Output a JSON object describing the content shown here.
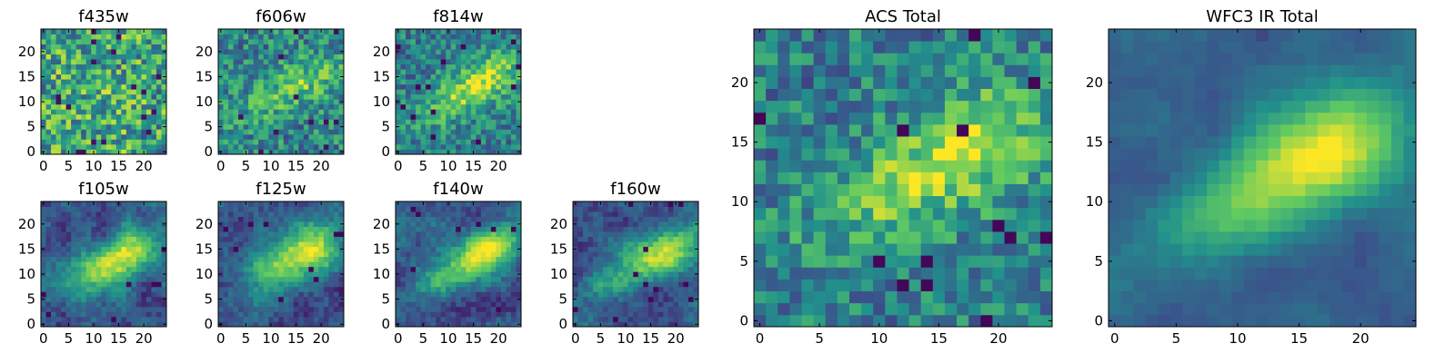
{
  "figure": {
    "description_type": "multi-panel image grid",
    "colormap": "viridis",
    "colors": {
      "cmap_stops": [
        "#440154",
        "#3b528b",
        "#21918c",
        "#5ec962",
        "#fde725"
      ],
      "axes_frame": "#000000",
      "background": "#ffffff"
    }
  },
  "chart_data": [
    {
      "type": "heatmap",
      "title": "f435w",
      "xticks": [
        "0",
        "5",
        "10",
        "15",
        "20"
      ],
      "yticks": [
        "0",
        "5",
        "10",
        "15",
        "20"
      ],
      "xlim": [
        0,
        25
      ],
      "ylim": [
        0,
        25
      ],
      "grid": false,
      "pattern": "noise"
    },
    {
      "type": "heatmap",
      "title": "f606w",
      "xticks": [
        "0",
        "5",
        "10",
        "15",
        "20"
      ],
      "yticks": [
        "0",
        "5",
        "10",
        "15",
        "20"
      ],
      "xlim": [
        0,
        25
      ],
      "ylim": [
        0,
        25
      ],
      "grid": false,
      "pattern": "faint-galaxy"
    },
    {
      "type": "heatmap",
      "title": "f814w",
      "xticks": [
        "0",
        "5",
        "10",
        "15",
        "20"
      ],
      "yticks": [
        "0",
        "5",
        "10",
        "15",
        "20"
      ],
      "xlim": [
        0,
        25
      ],
      "ylim": [
        0,
        25
      ],
      "grid": false,
      "pattern": "galaxy-noisy"
    },
    {
      "type": "heatmap",
      "title": "f105w",
      "xticks": [
        "0",
        "5",
        "10",
        "15",
        "20"
      ],
      "yticks": [
        "0",
        "5",
        "10",
        "15",
        "20"
      ],
      "xlim": [
        0,
        25
      ],
      "ylim": [
        0,
        25
      ],
      "grid": false,
      "pattern": "galaxy"
    },
    {
      "type": "heatmap",
      "title": "f125w",
      "xticks": [
        "0",
        "5",
        "10",
        "15",
        "20"
      ],
      "yticks": [
        "0",
        "5",
        "10",
        "15",
        "20"
      ],
      "xlim": [
        0,
        25
      ],
      "ylim": [
        0,
        25
      ],
      "grid": false,
      "pattern": "galaxy"
    },
    {
      "type": "heatmap",
      "title": "f140w",
      "xticks": [
        "0",
        "5",
        "10",
        "15",
        "20"
      ],
      "yticks": [
        "0",
        "5",
        "10",
        "15",
        "20"
      ],
      "xlim": [
        0,
        25
      ],
      "ylim": [
        0,
        25
      ],
      "grid": false,
      "pattern": "galaxy"
    },
    {
      "type": "heatmap",
      "title": "f160w",
      "xticks": [
        "0",
        "5",
        "10",
        "15",
        "20"
      ],
      "yticks": [
        "0",
        "5",
        "10",
        "15",
        "20"
      ],
      "xlim": [
        0,
        25
      ],
      "ylim": [
        0,
        25
      ],
      "grid": false,
      "pattern": "galaxy"
    },
    {
      "type": "heatmap",
      "title": "ACS Total",
      "xticks": [
        "0",
        "5",
        "10",
        "15",
        "20"
      ],
      "yticks": [
        "0",
        "5",
        "10",
        "15",
        "20"
      ],
      "xlim": [
        0,
        25
      ],
      "ylim": [
        0,
        25
      ],
      "grid": false,
      "pattern": "galaxy-noisy"
    },
    {
      "type": "heatmap",
      "title": "WFC3 IR Total",
      "xticks": [
        "0",
        "5",
        "10",
        "15",
        "20"
      ],
      "yticks": [
        "0",
        "5",
        "10",
        "15",
        "20"
      ],
      "xlim": [
        0,
        25
      ],
      "ylim": [
        0,
        25
      ],
      "grid": false,
      "pattern": "galaxy-smooth"
    }
  ]
}
